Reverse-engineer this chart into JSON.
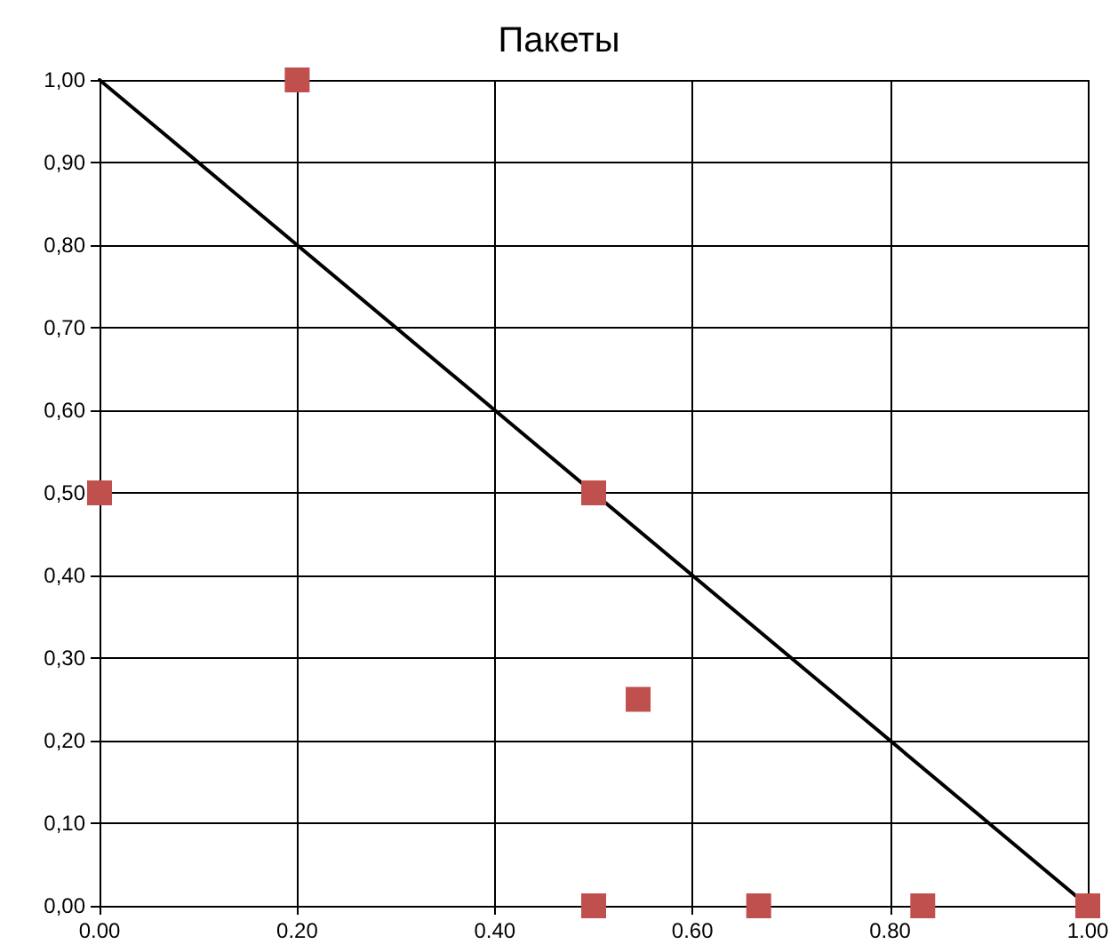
{
  "chart_data": {
    "type": "scatter",
    "title": "Пакеты",
    "series": [
      {
        "color": "#c0504d",
        "marker": "square",
        "x": [
          0,
          0.2,
          0.5,
          0.545,
          0.5,
          0.667,
          0.833,
          1
        ],
        "values": [
          0.5,
          1,
          0.5,
          0.25,
          0,
          0,
          0,
          0
        ]
      },
      {
        "type": "line",
        "color": "#000000",
        "marker": "none",
        "line_style": "solid",
        "x": [
          0,
          1
        ],
        "values": [
          1,
          0
        ]
      }
    ],
    "xlim": [
      0,
      1
    ],
    "xticks": [
      {
        "value": 0,
        "label": "0.00"
      },
      {
        "value": 0.2,
        "label": "0.20"
      },
      {
        "value": 0.4,
        "label": "0.40"
      },
      {
        "value": 0.6,
        "label": "0.60"
      },
      {
        "value": 0.8,
        "label": "0.80"
      },
      {
        "value": 1,
        "label": "1.00"
      }
    ],
    "ylim": [
      0,
      1
    ],
    "yticks": [
      {
        "value": 0,
        "label": "0,00"
      },
      {
        "value": 0.1,
        "label": "0,10"
      },
      {
        "value": 0.2,
        "label": "0,20"
      },
      {
        "value": 0.3,
        "label": "0,30"
      },
      {
        "value": 0.4,
        "label": "0,40"
      },
      {
        "value": 0.5,
        "label": "0,50"
      },
      {
        "value": 0.6,
        "label": "0,60"
      },
      {
        "value": 0.7,
        "label": "0,70"
      },
      {
        "value": 0.8,
        "label": "0,80"
      },
      {
        "value": 0.9,
        "label": "0,90"
      },
      {
        "value": 1,
        "label": "1,00"
      }
    ],
    "grid": true
  }
}
